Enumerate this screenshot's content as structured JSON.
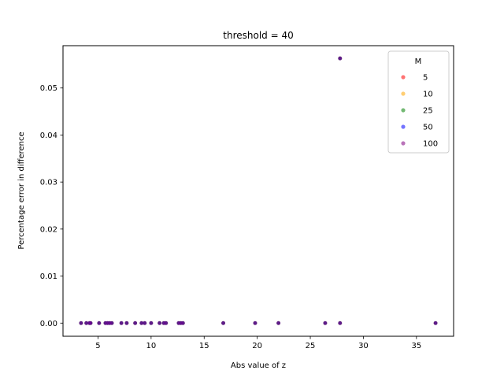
{
  "chart_data": {
    "type": "scatter",
    "title": "threshold = 40",
    "xlabel": "Abs value of z",
    "ylabel": "Percentage error in difference",
    "xlim": [
      1.7,
      38.5
    ],
    "ylim": [
      -0.0028,
      0.059
    ],
    "xticks": [
      5,
      10,
      15,
      20,
      25,
      30,
      35
    ],
    "xtick_labels": [
      "5",
      "10",
      "15",
      "20",
      "25",
      "30",
      "35"
    ],
    "yticks": [
      0.0,
      0.01,
      0.02,
      0.03,
      0.04,
      0.05
    ],
    "ytick_labels": [
      "0.00",
      "0.01",
      "0.02",
      "0.03",
      "0.04",
      "0.05"
    ],
    "grid": false,
    "legend": {
      "title": "M",
      "placement": "top-right"
    },
    "x": [
      3.4,
      3.9,
      4.2,
      4.3,
      5.1,
      5.7,
      5.9,
      6.1,
      6.3,
      7.2,
      7.7,
      8.5,
      9.1,
      9.4,
      10.0,
      10.8,
      11.2,
      11.4,
      12.6,
      12.8,
      13.0,
      16.8,
      19.8,
      22.0,
      26.4,
      27.8,
      27.8,
      36.8
    ],
    "series": [
      {
        "name": "5",
        "color": "#ff0000",
        "values": [
          0,
          0,
          0,
          0,
          0,
          0,
          0,
          0,
          0,
          0,
          0,
          0,
          0,
          0,
          0,
          0,
          0,
          0,
          0,
          0,
          0,
          0,
          0,
          0,
          0,
          0,
          0.0563,
          0
        ]
      },
      {
        "name": "10",
        "color": "#ffa500",
        "values": [
          0,
          0,
          0,
          0,
          0,
          0,
          0,
          0,
          0,
          0,
          0,
          0,
          0,
          0,
          0,
          0,
          0,
          0,
          0,
          0,
          0,
          0,
          0,
          0,
          0,
          0,
          0.0563,
          0
        ]
      },
      {
        "name": "25",
        "color": "#008000",
        "values": [
          0,
          0,
          0,
          0,
          0,
          0,
          0,
          0,
          0,
          0,
          0,
          0,
          0,
          0,
          0,
          0,
          0,
          0,
          0,
          0,
          0,
          0,
          0,
          0,
          0,
          0,
          0.0563,
          0
        ]
      },
      {
        "name": "50",
        "color": "#0000ff",
        "values": [
          0,
          0,
          0,
          0,
          0,
          0,
          0,
          0,
          0,
          0,
          0,
          0,
          0,
          0,
          0,
          0,
          0,
          0,
          0,
          0,
          0,
          0,
          0,
          0,
          0,
          0,
          0.0563,
          0
        ]
      },
      {
        "name": "100",
        "color": "#800080",
        "values": [
          0,
          0,
          0,
          0,
          0,
          0,
          0,
          0,
          0,
          0,
          0,
          0,
          0,
          0,
          0,
          0,
          0,
          0,
          0,
          0,
          0,
          0,
          0,
          0,
          0,
          0,
          0.0563,
          0
        ]
      }
    ]
  }
}
